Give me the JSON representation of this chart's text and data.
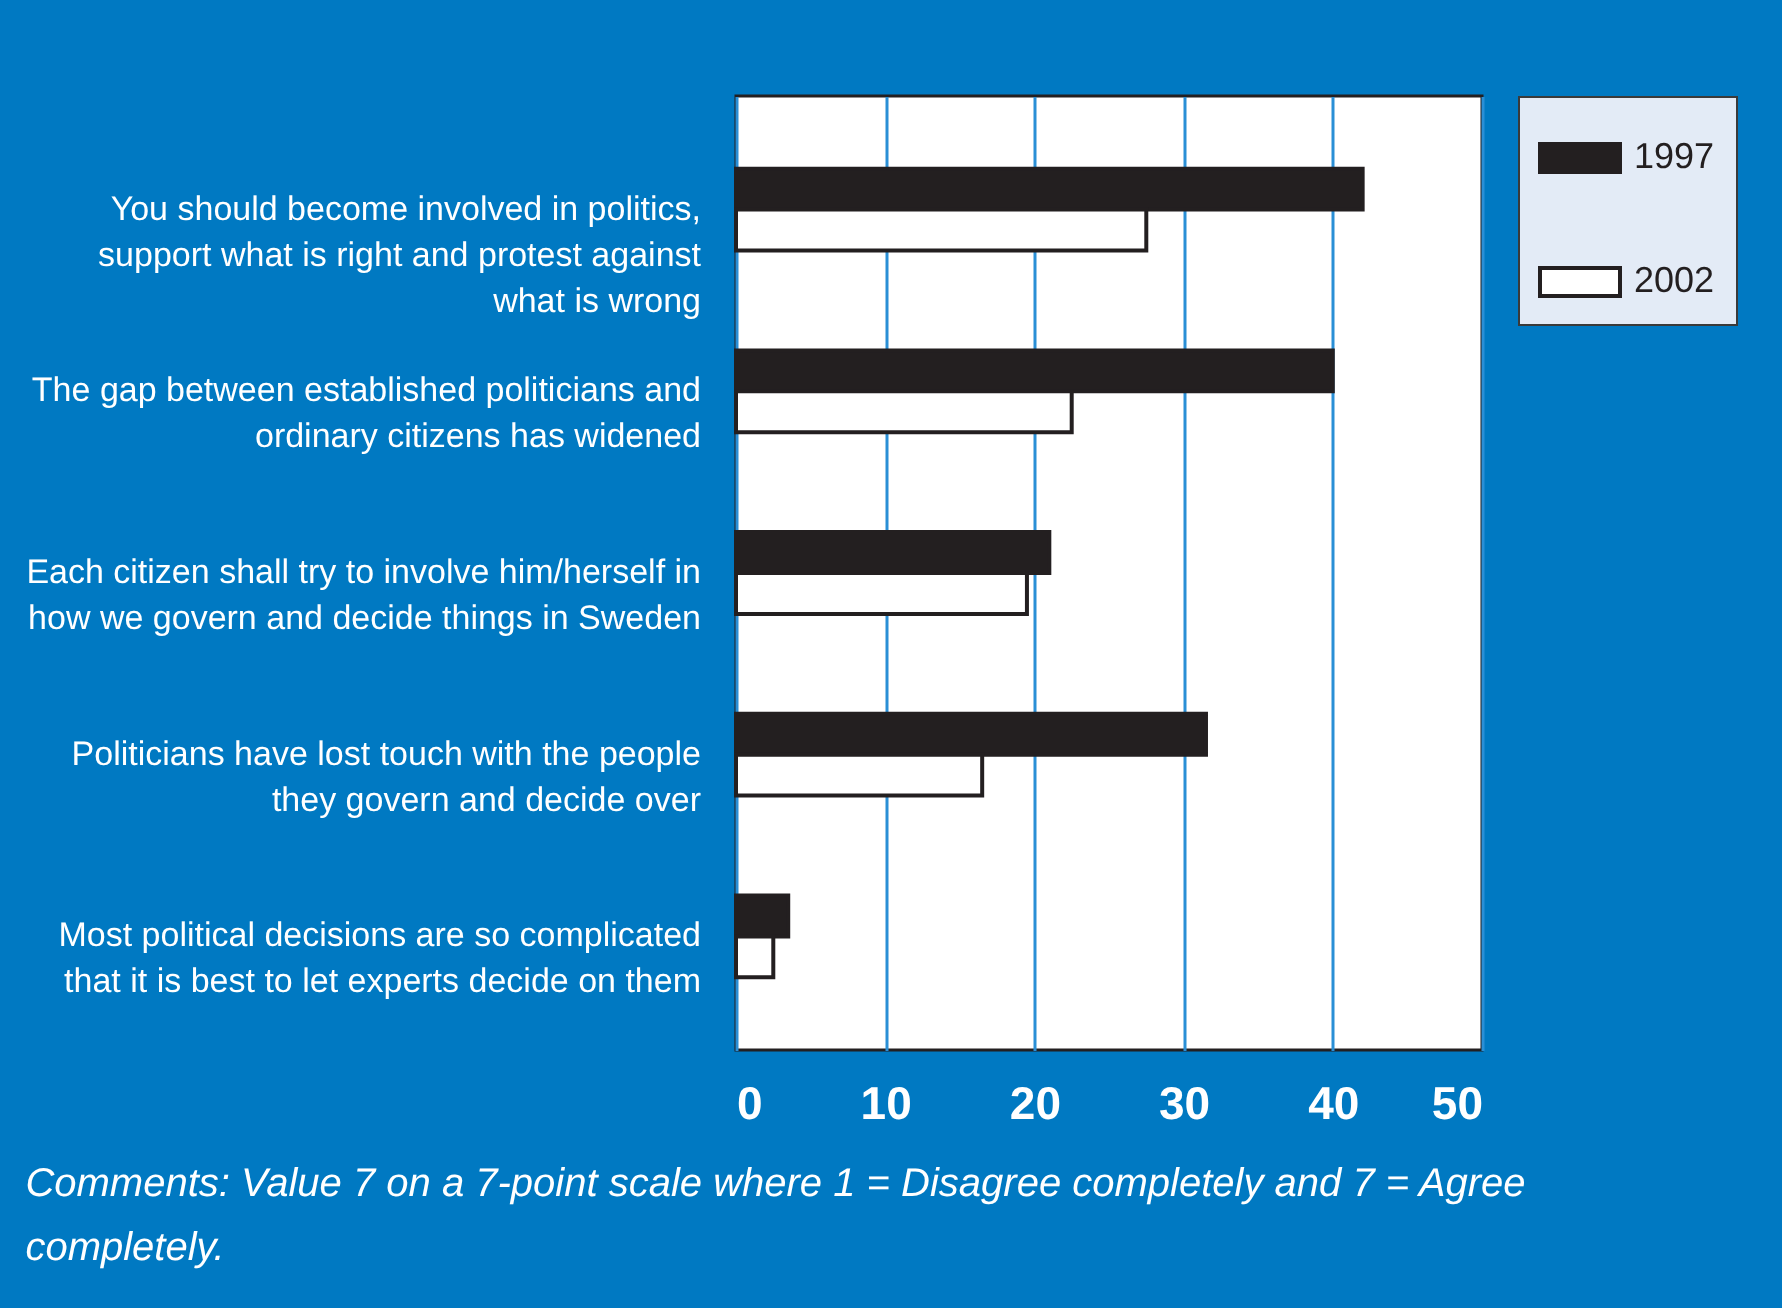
{
  "chart_data": {
    "type": "bar",
    "orientation": "horizontal",
    "categories": [
      "You should become involved in politics,\nsupport what is right and protest against\nwhat is wrong",
      "The gap between established politicians and\nordinary citizens has widened",
      "Each citizen shall try to involve him/herself in\nhow we govern and decide things in Sweden",
      "Politicians have lost touch with the people\nthey govern and decide over",
      "Most political decisions are so complicated\nthat it is best to let experts decide on them"
    ],
    "series": [
      {
        "name": "1997",
        "color": "#231f20",
        "values": [
          42,
          40,
          21,
          31.5,
          3.5
        ]
      },
      {
        "name": "2002",
        "color": "#ffffff",
        "values": [
          27.5,
          22.5,
          19.5,
          16.5,
          2.5
        ]
      }
    ],
    "xlim": [
      0,
      50
    ],
    "xticks": [
      0,
      10,
      20,
      30,
      40,
      50
    ],
    "grid": "x",
    "legend": "right",
    "annotations": [
      "Comments: Value 7 on a 7-point scale where 1 = Disagree completely and 7 = Agree completely."
    ]
  }
}
